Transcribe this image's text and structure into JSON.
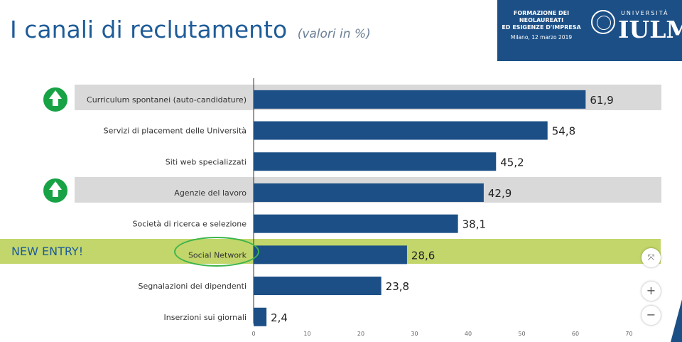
{
  "header": {
    "title": "I canali di reclutamento",
    "subtitle": "(valori in %)",
    "event_line1": "FORMAZIONE DEI",
    "event_line2": "NEOLAUREATI",
    "event_line3": "ED ESIGENZE D'IMPRESA",
    "event_date": "Milano, 12 marzo 2019",
    "brand_top": "UNIVERSITÀ",
    "brand_name": "IULM"
  },
  "annotations": {
    "new_entry": "NEW ENTRY!"
  },
  "controls": {
    "fit": "⤧",
    "zoom_in": "+",
    "zoom_out": "−"
  },
  "chart_data": {
    "type": "bar",
    "orientation": "horizontal",
    "categories": [
      "Curriculum spontanei (auto-candidature)",
      "Servizi di placement delle Università",
      "Siti web specializzati",
      "Agenzie del lavoro",
      "Società di ricerca e selezione",
      "Social Network",
      "Segnalazioni dei dipendenti",
      "Inserzioni sui giornali"
    ],
    "values": [
      61.9,
      54.8,
      45.2,
      42.9,
      38.1,
      28.6,
      23.8,
      2.4
    ],
    "value_labels": [
      "61,9",
      "54,8",
      "45,2",
      "42,9",
      "38,1",
      "28,6",
      "23,8",
      "2,4"
    ],
    "xlim": [
      0,
      75
    ],
    "xticks": [
      0,
      10,
      20,
      30,
      40,
      50,
      60,
      70
    ],
    "bar_color": "#1c4f86",
    "highlight_gray": [
      0,
      3
    ],
    "highlight_green": [
      5
    ]
  }
}
